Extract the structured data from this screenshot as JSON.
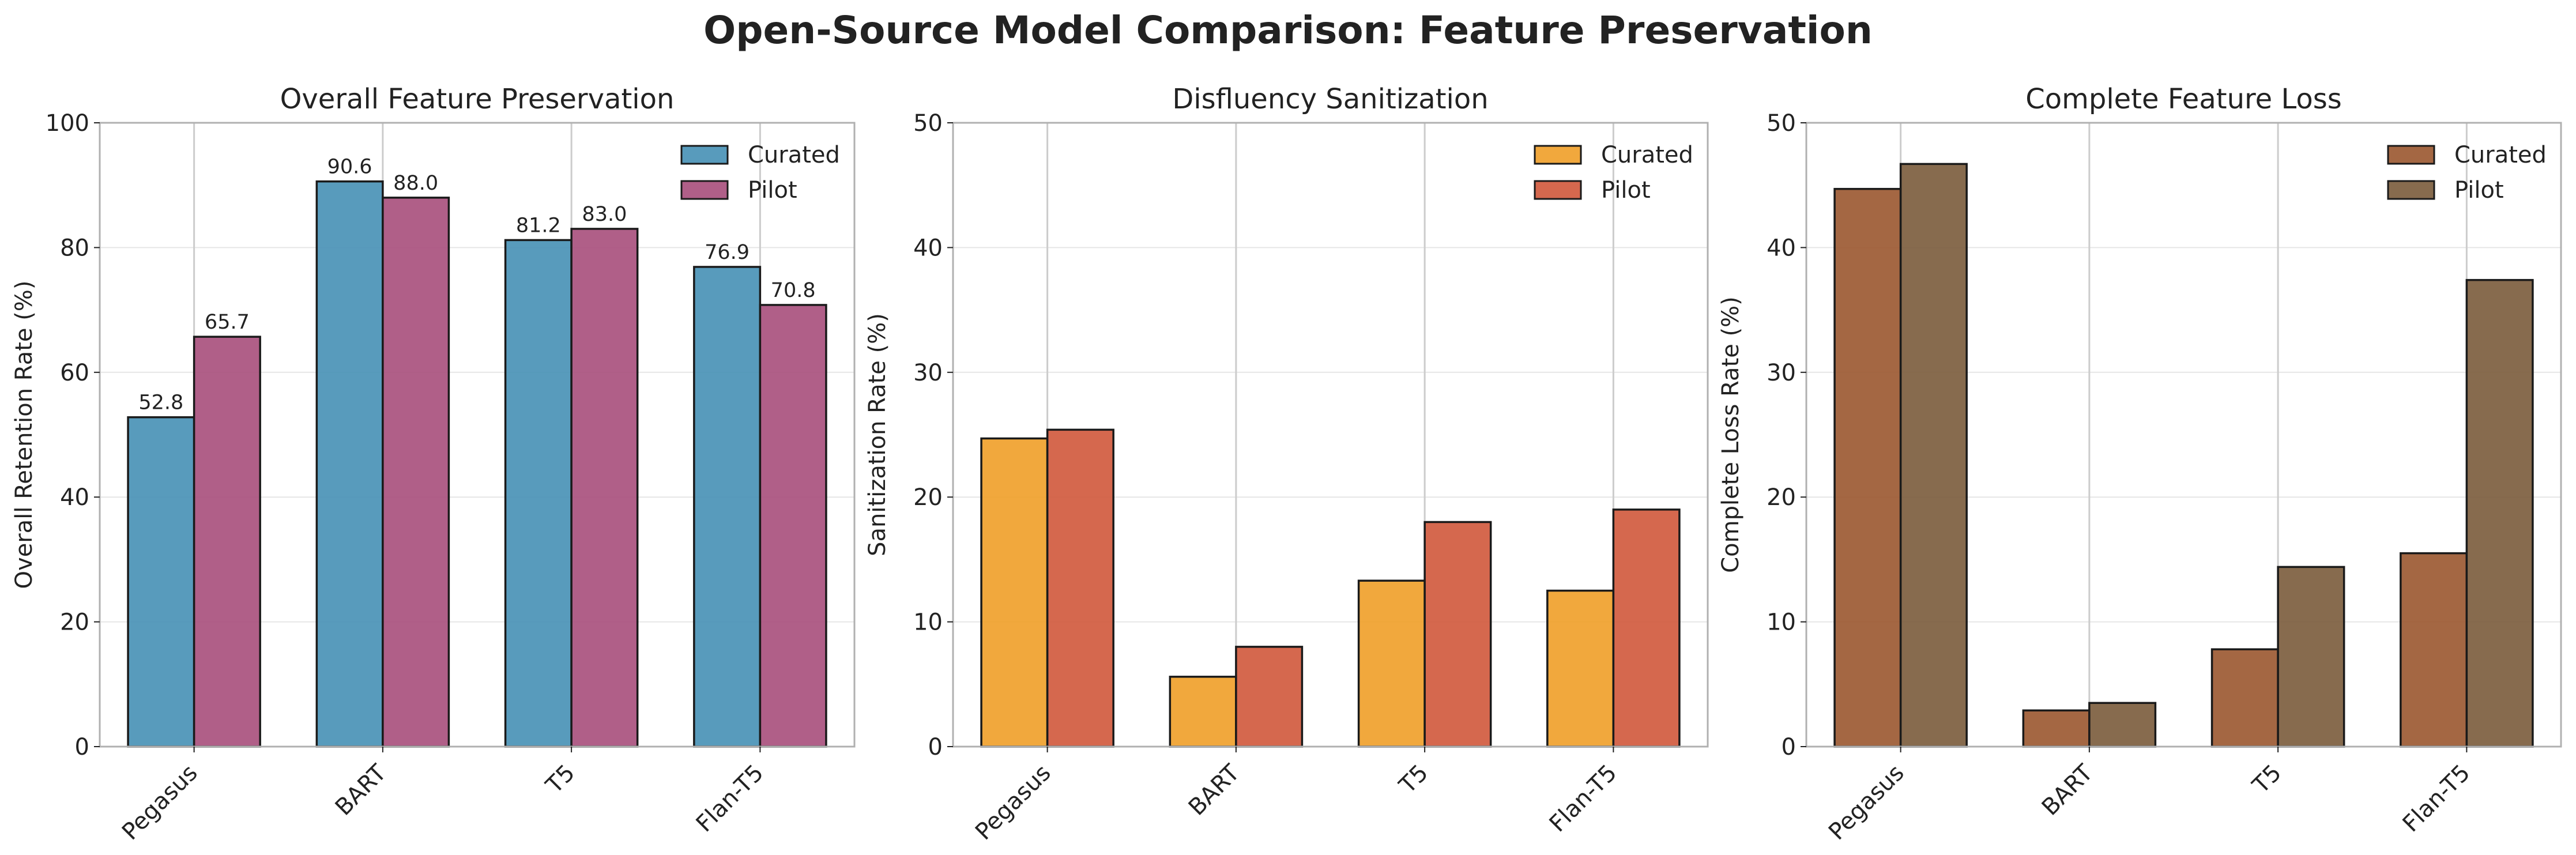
{
  "figure": {
    "title": "Open-Source Model Comparison: Feature Preservation"
  },
  "colors": {
    "grid": "#e6e6e6",
    "vgrid": "#cccccc",
    "spine": "#b0b0b0",
    "text": "#222222",
    "bar_edge": "#1a1a1a"
  },
  "chart_data": [
    {
      "type": "bar",
      "title": "Overall Feature Preservation",
      "xlabel": "",
      "ylabel": "Overall Retention Rate (%)",
      "categories": [
        "Pegasus",
        "BART",
        "T5",
        "Flan-T5"
      ],
      "ylim": [
        0,
        100
      ],
      "yticks": [
        0,
        20,
        40,
        60,
        80,
        100
      ],
      "grid": true,
      "legend": "top-right",
      "show_value_labels": true,
      "series": [
        {
          "name": "Curated",
          "values": [
            52.8,
            90.6,
            81.2,
            76.9
          ],
          "color": "#4a92b6"
        },
        {
          "name": "Pilot",
          "values": [
            65.7,
            88.0,
            83.0,
            70.8
          ],
          "color": "#a9517e"
        }
      ]
    },
    {
      "type": "bar",
      "title": "Disfluency Sanitization",
      "xlabel": "",
      "ylabel": "Sanitization Rate (%)",
      "categories": [
        "Pegasus",
        "BART",
        "T5",
        "Flan-T5"
      ],
      "ylim": [
        0,
        50
      ],
      "yticks": [
        0,
        10,
        20,
        30,
        40,
        50
      ],
      "grid": true,
      "legend": "top-right",
      "show_value_labels": false,
      "series": [
        {
          "name": "Curated",
          "values": [
            24.7,
            5.6,
            13.3,
            12.5
          ],
          "color": "#f0a12c"
        },
        {
          "name": "Pilot",
          "values": [
            25.4,
            8.0,
            18.0,
            19.0
          ],
          "color": "#d15b3f"
        }
      ]
    },
    {
      "type": "bar",
      "title": "Complete Feature Loss",
      "xlabel": "",
      "ylabel": "Complete Loss Rate (%)",
      "categories": [
        "Pegasus",
        "BART",
        "T5",
        "Flan-T5"
      ],
      "ylim": [
        0,
        50
      ],
      "yticks": [
        0,
        10,
        20,
        30,
        40,
        50
      ],
      "grid": true,
      "legend": "top-right",
      "show_value_labels": false,
      "series": [
        {
          "name": "Curated",
          "values": [
            44.7,
            2.9,
            7.8,
            15.5
          ],
          "color": "#9c5a33"
        },
        {
          "name": "Pilot",
          "values": [
            46.7,
            3.5,
            14.4,
            37.4
          ],
          "color": "#7d5e3f"
        }
      ]
    }
  ]
}
